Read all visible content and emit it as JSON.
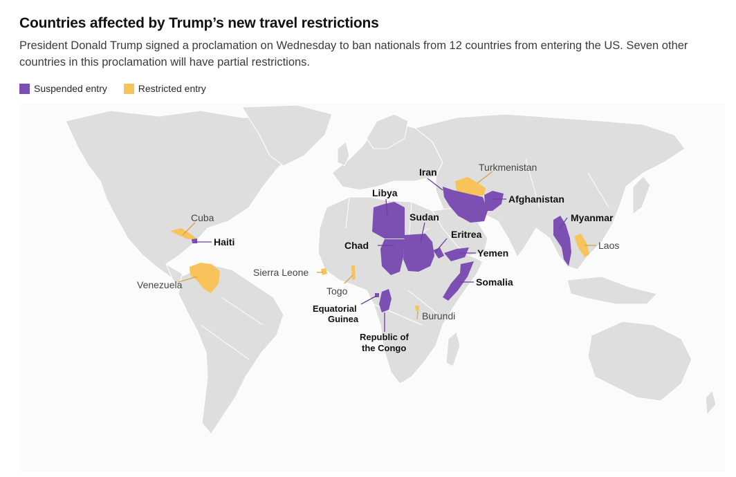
{
  "title": "Countries affected by Trump’s new travel restrictions",
  "subtitle": "President Donald Trump signed a proclamation on Wednesday to ban nationals from 12 countries from entering the US. Seven other countries in this proclamation will have partial restrictions.",
  "colors": {
    "suspended": "#7c4fb3",
    "restricted": "#f7c35a",
    "land": "#dedede"
  },
  "legend": [
    {
      "label": "Suspended entry",
      "color": "#7c4fb3"
    },
    {
      "label": "Restricted entry",
      "color": "#f7c35a"
    }
  ],
  "suspended": [
    "Afghanistan",
    "Myanmar",
    "Chad",
    "Republic of the Congo",
    "Equatorial Guinea",
    "Eritrea",
    "Haiti",
    "Iran",
    "Libya",
    "Somalia",
    "Sudan",
    "Yemen"
  ],
  "restricted": [
    "Cuba",
    "Laos",
    "Sierra Leone",
    "Togo",
    "Turkmenistan",
    "Venezuela",
    "Burundi"
  ],
  "labels": {
    "iran": "Iran",
    "turkmenistan": "Turkmenistan",
    "libya": "Libya",
    "afghanistan": "Afghanistan",
    "sudan": "Sudan",
    "myanmar": "Myanmar",
    "cuba": "Cuba",
    "eritrea": "Eritrea",
    "haiti": "Haiti",
    "chad": "Chad",
    "laos": "Laos",
    "yemen": "Yemen",
    "sierra_leone": "Sierra Leone",
    "venezuela": "Venezuela",
    "somalia": "Somalia",
    "togo": "Togo",
    "eq_guinea_1": "Equatorial",
    "eq_guinea_2": "Guinea",
    "burundi": "Burundi",
    "congo_1": "Republic of",
    "congo_2": "the Congo"
  }
}
